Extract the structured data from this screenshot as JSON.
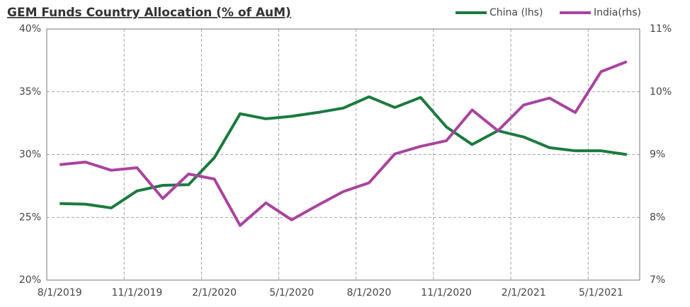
{
  "chart_data": {
    "type": "line",
    "title": "GEM Funds Country Allocation (% of AuM)",
    "categories": [
      "8/1/2019",
      null,
      null,
      "11/1/2019",
      null,
      null,
      "2/1/2020",
      null,
      null,
      "5/1/2020",
      null,
      null,
      "8/1/2020",
      null,
      null,
      "11/1/2020",
      null,
      null,
      "2/1/2021",
      null,
      null,
      "5/1/2021",
      null
    ],
    "series": [
      {
        "name": "China (lhs)",
        "color": "#1b7a3e",
        "values": [
          26.1,
          26.05,
          25.75,
          27.1,
          27.55,
          27.6,
          29.75,
          33.25,
          32.85,
          33.05,
          33.35,
          33.7,
          34.6,
          33.75,
          34.55,
          32.2,
          30.8,
          31.9,
          31.4,
          30.55,
          30.3,
          30.3,
          30.0
        ]
      },
      {
        "name": "India(rhs)",
        "color": "#a8449e",
        "axis": "y2",
        "values": [
          8.84,
          8.88,
          8.75,
          8.79,
          8.3,
          8.69,
          8.61,
          7.87,
          8.23,
          7.96,
          8.19,
          8.41,
          8.55,
          9.01,
          9.13,
          9.22,
          9.71,
          9.38,
          9.79,
          9.9,
          9.67,
          10.32,
          10.48
        ]
      }
    ],
    "ylim": [
      20,
      40
    ],
    "yticks": [
      {
        "value": 20,
        "label": "20%"
      },
      {
        "value": 25,
        "label": "25%"
      },
      {
        "value": 30,
        "label": "30%"
      },
      {
        "value": 35,
        "label": "35%"
      },
      {
        "value": 40,
        "label": "40%"
      }
    ],
    "y2lim": [
      7,
      11
    ],
    "y2ticks": [
      {
        "value": 7,
        "label": "7%"
      },
      {
        "value": 8,
        "label": "8%"
      },
      {
        "value": 9,
        "label": "9%"
      },
      {
        "value": 10,
        "label": "10%"
      },
      {
        "value": 11,
        "label": "11%"
      }
    ],
    "grid": true,
    "legend": "top-right"
  }
}
